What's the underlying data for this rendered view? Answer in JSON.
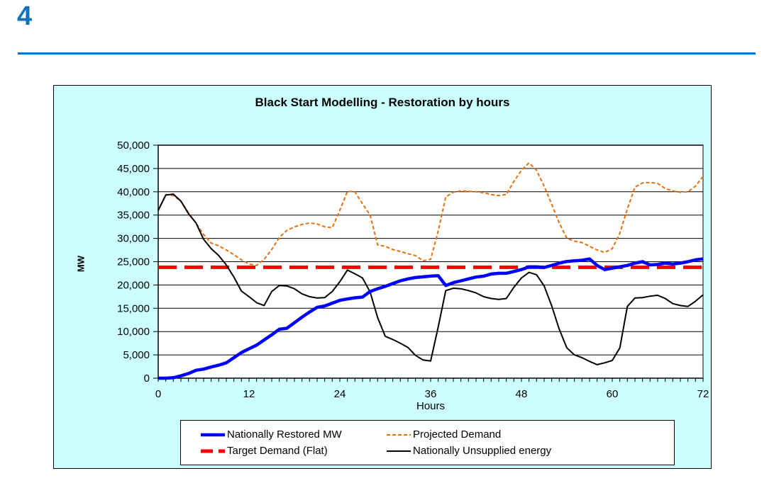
{
  "page": {
    "slide_number": "4",
    "accent_color": "#1071BC",
    "background": "#FFFFFF"
  },
  "chart_data": {
    "type": "line",
    "title": "Black Start Modelling - Restoration by hours",
    "xlabel": "Hours",
    "ylabel": "MW",
    "background": "#CCFFFF",
    "plot_background": "#FFFFFF",
    "plot_border_color": "#808080",
    "grid": true,
    "grid_color": "#000000",
    "legend_position": "bottom",
    "xlim": [
      0,
      72
    ],
    "ylim": [
      0,
      50000
    ],
    "x_ticks": [
      0,
      12,
      24,
      36,
      48,
      60,
      72
    ],
    "minor_tick_interval": 1,
    "y_tick_step": 5000,
    "y_tick_labels": [
      "0",
      "5,000",
      "10,000",
      "15,000",
      "20,000",
      "25,000",
      "30,000",
      "35,000",
      "40,000",
      "45,000",
      "50,000"
    ],
    "draw_order": [
      1,
      2,
      3,
      0
    ],
    "series": [
      {
        "id": "nationally-restored-mw",
        "name": "Nationally Restored MW",
        "color": "#0000FF",
        "width": 4.5,
        "dash": null,
        "legend_dash": null,
        "values": [
          0,
          0,
          100,
          500,
          1000,
          1700,
          1950,
          2400,
          2800,
          3300,
          4400,
          5500,
          6300,
          7100,
          8200,
          9300,
          10500,
          10700,
          11900,
          13100,
          14200,
          15200,
          15500,
          16100,
          16700,
          17000,
          17250,
          17400,
          18600,
          19200,
          19700,
          20300,
          20900,
          21300,
          21600,
          21750,
          21900,
          22000,
          19900,
          20500,
          20900,
          21300,
          21700,
          21900,
          22350,
          22500,
          22500,
          22900,
          23300,
          23900,
          23900,
          23750,
          24200,
          24700,
          25050,
          25200,
          25300,
          25600,
          24200,
          23300,
          23600,
          23900,
          24200,
          24700,
          25000,
          24300,
          24400,
          24700,
          24500,
          24700,
          25000,
          25400,
          25600
        ]
      },
      {
        "id": "projected-demand",
        "name": "Projected Demand",
        "color": "#E8700F",
        "width": 2,
        "dash": "5 3",
        "legend_dash": "5 3",
        "values": [
          36000,
          39400,
          39200,
          38000,
          35500,
          33300,
          30800,
          29000,
          28400,
          27500,
          26500,
          25400,
          24500,
          24200,
          25500,
          27600,
          30200,
          31700,
          32500,
          33000,
          33300,
          33100,
          32500,
          32300,
          36000,
          40100,
          40000,
          37400,
          35000,
          28600,
          28300,
          27600,
          27200,
          26700,
          26300,
          25200,
          25500,
          31600,
          38900,
          39900,
          40200,
          40100,
          40000,
          39800,
          39400,
          39200,
          39400,
          42200,
          44600,
          46200,
          44600,
          41200,
          37300,
          33300,
          30000,
          29400,
          29100,
          28300,
          27500,
          27000,
          27800,
          31100,
          36300,
          41000,
          41900,
          42000,
          41800,
          40700,
          40200,
          39900,
          40000,
          41200,
          43300
        ]
      },
      {
        "id": "target-demand-flat",
        "name": "Target Demand (Flat)",
        "color": "#FF0000",
        "width": 5,
        "dash": "26 11",
        "legend_dash": "17 8",
        "type": "constant",
        "value": 23800
      },
      {
        "id": "nationally-unsupplied-energy",
        "name": "Nationally Unsupplied energy",
        "color": "#000000",
        "width": 2,
        "dash": null,
        "legend_dash": null,
        "values": [
          36000,
          39300,
          39500,
          38000,
          35300,
          33300,
          29800,
          27800,
          26300,
          24300,
          21700,
          18700,
          17500,
          16200,
          15600,
          18600,
          19900,
          19800,
          19200,
          18100,
          17500,
          17200,
          17300,
          18600,
          20700,
          23200,
          22400,
          21500,
          18500,
          13000,
          9000,
          8300,
          7500,
          6600,
          4900,
          3900,
          3700,
          11000,
          18800,
          19300,
          19200,
          18800,
          18300,
          17500,
          17100,
          16900,
          17100,
          19500,
          21500,
          22700,
          22200,
          19800,
          15500,
          10500,
          6500,
          5000,
          4400,
          3600,
          2900,
          3300,
          3800,
          6500,
          15400,
          17200,
          17300,
          17600,
          17800,
          17100,
          16000,
          15600,
          15400,
          16500,
          17900
        ]
      }
    ]
  }
}
